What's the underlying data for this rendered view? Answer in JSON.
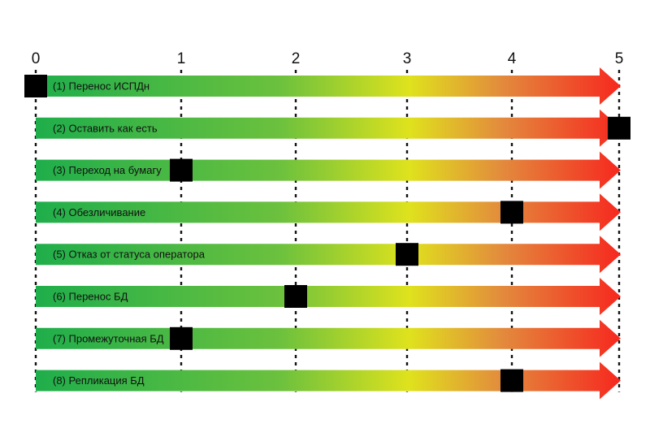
{
  "chart_data": {
    "type": "bar",
    "xlim": [
      0,
      5
    ],
    "x_ticks": [
      "0",
      "1",
      "2",
      "3",
      "4",
      "5"
    ],
    "grid": true,
    "color_scale": [
      "#1fae4b",
      "#dfe21d",
      "#f6291f"
    ],
    "marker_color": "#000000",
    "categories": [
      "(1) Перенос ИСПДн",
      "(2) Оставить как есть",
      "(3) Переход на бумагу",
      "(4) Обезличивание",
      "(5) Отказ от статуса оператора",
      "(6) Перенос БД",
      "(7) Промежуточная БД",
      "(8) Репликация БД"
    ],
    "values": [
      0,
      5,
      1,
      4,
      3,
      2,
      1,
      4
    ]
  }
}
